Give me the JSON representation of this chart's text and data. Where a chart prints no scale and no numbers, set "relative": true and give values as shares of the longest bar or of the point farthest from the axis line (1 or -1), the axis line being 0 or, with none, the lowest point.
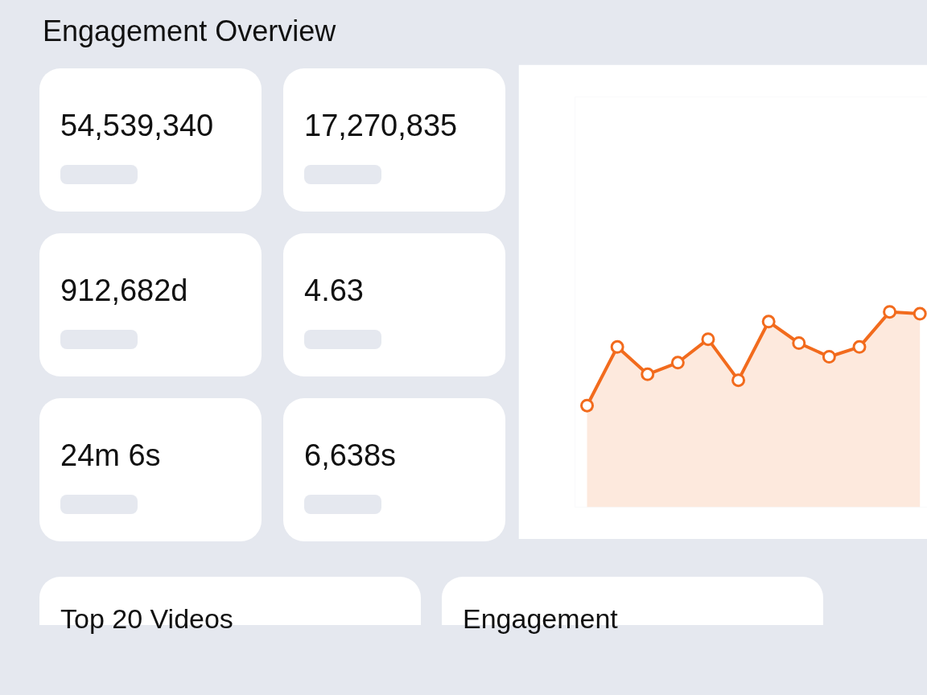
{
  "chart_data": [
    {
      "type": "other",
      "title": "Engagement Overview",
      "annotations": [
        "54,539,340",
        "17,270,835",
        "912,682d",
        "4.63",
        "24m 6s",
        "6,638s",
        "Top 20 Videos",
        "Engagement"
      ]
    },
    {
      "type": "area",
      "relative": true,
      "categories": [
        null,
        null,
        null,
        null,
        null,
        null,
        null,
        null,
        null,
        null,
        null,
        null
      ],
      "values": [
        0.52,
        0.82,
        0.68,
        0.74,
        0.86,
        0.65,
        0.95,
        0.84,
        0.77,
        0.82,
        1.0,
        0.99
      ],
      "color": "#f26b1d",
      "marker": "circle",
      "line_style": "solid"
    }
  ]
}
